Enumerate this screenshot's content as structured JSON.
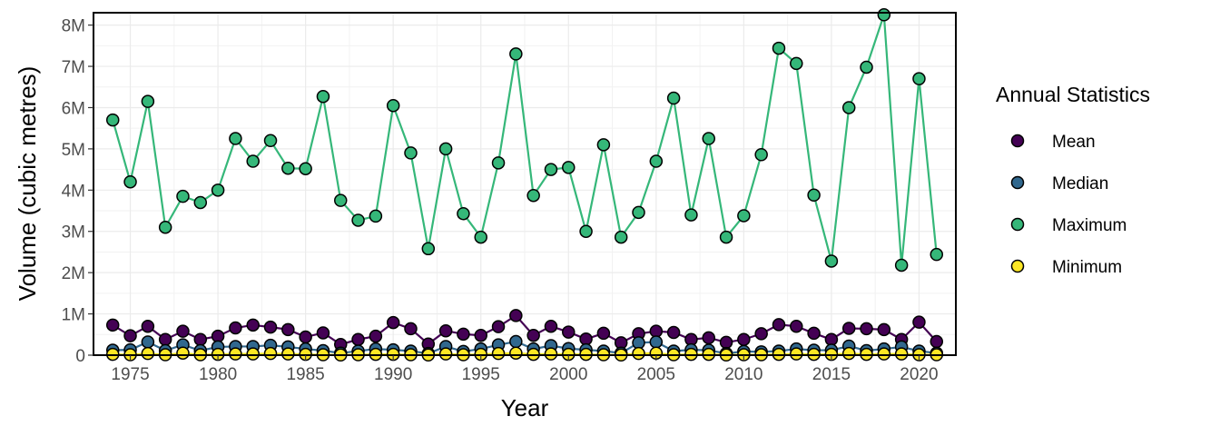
{
  "chart_data": {
    "type": "line",
    "title": "",
    "xlabel": "Year",
    "ylabel": "Volume (cubic metres)",
    "xlim": [
      1972.9,
      2022.1
    ],
    "ylim": [
      0,
      8300000
    ],
    "x_ticks": [
      1975,
      1980,
      1985,
      1990,
      1995,
      2000,
      2005,
      2010,
      2015,
      2020
    ],
    "x_tick_labels": [
      "1975",
      "1980",
      "1985",
      "1990",
      "1995",
      "2000",
      "2005",
      "2010",
      "2015",
      "2020"
    ],
    "y_ticks": [
      0,
      1000000,
      2000000,
      3000000,
      4000000,
      5000000,
      6000000,
      7000000,
      8000000
    ],
    "y_tick_labels": [
      "0",
      "1M",
      "2M",
      "3M",
      "4M",
      "5M",
      "6M",
      "7M",
      "8M"
    ],
    "grid": true,
    "legend": {
      "title": "Annual Statistics",
      "placement": "right"
    },
    "x": [
      1974,
      1975,
      1976,
      1977,
      1978,
      1979,
      1980,
      1981,
      1982,
      1983,
      1984,
      1985,
      1986,
      1987,
      1988,
      1989,
      1990,
      1991,
      1992,
      1993,
      1994,
      1995,
      1996,
      1997,
      1998,
      1999,
      2000,
      2001,
      2002,
      2003,
      2004,
      2005,
      2006,
      2007,
      2008,
      2009,
      2010,
      2011,
      2012,
      2013,
      2014,
      2015,
      2016,
      2017,
      2018,
      2019,
      2020,
      2021
    ],
    "series": [
      {
        "name": "Mean",
        "color": "#440154",
        "values": [
          730000,
          470000,
          700000,
          380000,
          580000,
          380000,
          460000,
          660000,
          730000,
          680000,
          620000,
          440000,
          540000,
          260000,
          380000,
          460000,
          790000,
          640000,
          270000,
          590000,
          510000,
          480000,
          690000,
          960000,
          480000,
          700000,
          560000,
          390000,
          530000,
          300000,
          520000,
          580000,
          550000,
          380000,
          420000,
          310000,
          380000,
          520000,
          740000,
          700000,
          530000,
          380000,
          650000,
          640000,
          620000,
          380000,
          800000,
          330000
        ]
      },
      {
        "name": "Median",
        "color": "#31688E",
        "values": [
          120000,
          130000,
          320000,
          110000,
          250000,
          110000,
          200000,
          210000,
          210000,
          240000,
          200000,
          150000,
          110000,
          50000,
          100000,
          150000,
          130000,
          100000,
          40000,
          210000,
          90000,
          150000,
          250000,
          330000,
          150000,
          230000,
          160000,
          130000,
          100000,
          50000,
          300000,
          320000,
          100000,
          130000,
          120000,
          40000,
          90000,
          80000,
          100000,
          150000,
          120000,
          120000,
          220000,
          110000,
          150000,
          200000,
          100000,
          50000
        ]
      },
      {
        "name": "Maximum",
        "color": "#35B779",
        "values": [
          5700000,
          4200000,
          6150000,
          3100000,
          3850000,
          3700000,
          4000000,
          5250000,
          4700000,
          5200000,
          4530000,
          4520000,
          6270000,
          3750000,
          3270000,
          3370000,
          6050000,
          4900000,
          2580000,
          5000000,
          3430000,
          2860000,
          4660000,
          7300000,
          3870000,
          4500000,
          4550000,
          3000000,
          5100000,
          2860000,
          3460000,
          4700000,
          6230000,
          3400000,
          5250000,
          2860000,
          3380000,
          4860000,
          7440000,
          7070000,
          3880000,
          2280000,
          6000000,
          6980000,
          8250000,
          2180000,
          6700000,
          2440000
        ]
      },
      {
        "name": "Minimum",
        "color": "#FDE725",
        "values": [
          20000,
          10000,
          40000,
          10000,
          50000,
          10000,
          20000,
          30000,
          30000,
          40000,
          30000,
          20000,
          10000,
          5000,
          10000,
          20000,
          20000,
          10000,
          5000,
          30000,
          10000,
          20000,
          40000,
          50000,
          20000,
          30000,
          20000,
          20000,
          10000,
          5000,
          40000,
          50000,
          10000,
          20000,
          20000,
          5000,
          10000,
          10000,
          20000,
          30000,
          20000,
          20000,
          40000,
          20000,
          30000,
          30000,
          10000,
          10000
        ]
      }
    ]
  }
}
